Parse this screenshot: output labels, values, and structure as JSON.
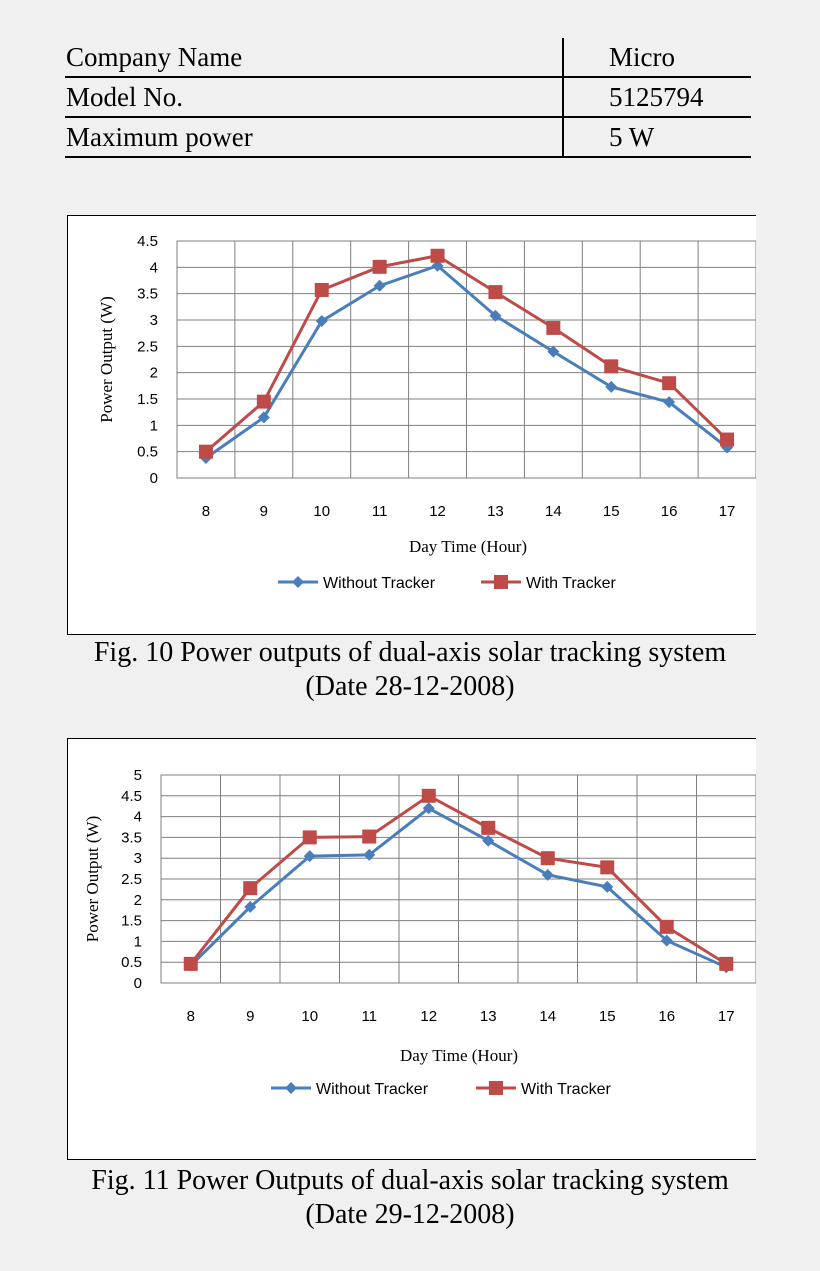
{
  "spec_table": {
    "rows": [
      {
        "label": "Company Name",
        "value": "Micro"
      },
      {
        "label": "Model No.",
        "value": "5125794"
      },
      {
        "label": "Maximum power",
        "value": "5 W"
      }
    ]
  },
  "colors": {
    "without": "#4a7ebb",
    "with": "#be4b48",
    "grid": "#7f7f7f"
  },
  "chart_data": [
    {
      "type": "line",
      "categories": [
        "8",
        "9",
        "10",
        "11",
        "12",
        "13",
        "14",
        "15",
        "16",
        "17"
      ],
      "series": [
        {
          "name": "Without Tracker",
          "marker": "diamond",
          "values": [
            0.38,
            1.15,
            2.98,
            3.65,
            4.03,
            3.08,
            2.4,
            1.73,
            1.44,
            0.58
          ]
        },
        {
          "name": "With Tracker",
          "marker": "square",
          "values": [
            0.5,
            1.45,
            3.57,
            4.01,
            4.22,
            3.53,
            2.85,
            2.12,
            1.8,
            0.73
          ]
        }
      ],
      "yticks": [
        "0",
        "0.5",
        "1",
        "1.5",
        "2",
        "2.5",
        "3",
        "3.5",
        "4",
        "4.5"
      ],
      "ylim": [
        0,
        4.5
      ],
      "xlabel": "Day Time (Hour)",
      "ylabel": "Power Output (W)",
      "legend_position": "bottom",
      "grid": true
    },
    {
      "type": "line",
      "categories": [
        "8",
        "9",
        "10",
        "11",
        "12",
        "13",
        "14",
        "15",
        "16",
        "17"
      ],
      "series": [
        {
          "name": "Without Tracker",
          "marker": "diamond",
          "values": [
            0.42,
            1.83,
            3.05,
            3.08,
            4.2,
            3.42,
            2.6,
            2.31,
            1.02,
            0.38
          ]
        },
        {
          "name": "With Tracker",
          "marker": "square",
          "values": [
            0.46,
            2.28,
            3.5,
            3.52,
            4.5,
            3.73,
            3.0,
            2.78,
            1.35,
            0.46
          ]
        }
      ],
      "yticks": [
        "0",
        "0.5",
        "1",
        "1.5",
        "2",
        "2.5",
        "3",
        "3.5",
        "4",
        "4.5",
        "5"
      ],
      "ylim": [
        0,
        5
      ],
      "xlabel": "Day Time (Hour)",
      "ylabel": "Power Output (W)",
      "legend_position": "bottom",
      "grid": true
    }
  ],
  "captions": [
    {
      "line1": "Fig. 10 Power outputs of dual-axis solar tracking system",
      "line2": "(Date 28-12-2008)"
    },
    {
      "line1": "Fig. 11 Power Outputs of dual-axis solar tracking system",
      "line2": "(Date 29-12-2008)"
    }
  ]
}
